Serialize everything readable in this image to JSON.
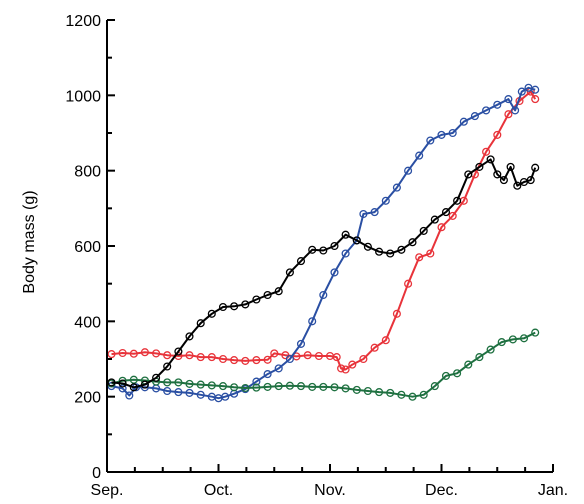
{
  "chart_data": {
    "type": "line",
    "title": "",
    "xlabel": "",
    "ylabel": "Body mass (g)",
    "xlim": [
      0,
      4
    ],
    "ylim": [
      0,
      1200
    ],
    "x_ticks": [
      {
        "value": 0,
        "label": "Sep."
      },
      {
        "value": 1,
        "label": "Oct."
      },
      {
        "value": 2,
        "label": "Nov."
      },
      {
        "value": 3,
        "label": "Dec."
      },
      {
        "value": 4,
        "label": "Jan."
      }
    ],
    "y_ticks": [
      0,
      200,
      400,
      600,
      800,
      1000,
      1200
    ],
    "y_minor_step": 100,
    "x_minor_per_major": 4,
    "grid": false,
    "legend": "none",
    "series": [
      {
        "color": "#e8333a",
        "marker": "circle-open",
        "x": [
          0.04,
          0.14,
          0.24,
          0.34,
          0.44,
          0.54,
          0.64,
          0.74,
          0.84,
          0.94,
          1.04,
          1.14,
          1.24,
          1.34,
          1.44,
          1.5,
          1.6,
          1.7,
          1.8,
          1.9,
          2.0,
          2.06,
          2.1,
          2.14,
          2.2,
          2.3,
          2.4,
          2.5,
          2.6,
          2.7,
          2.8,
          2.9,
          3.0,
          3.1,
          3.2,
          3.3,
          3.4,
          3.5,
          3.6,
          3.7,
          3.8,
          3.84
        ],
        "y": [
          313,
          316,
          314,
          318,
          315,
          310,
          308,
          310,
          305,
          305,
          300,
          297,
          295,
          297,
          298,
          315,
          310,
          307,
          310,
          308,
          308,
          305,
          275,
          272,
          285,
          300,
          330,
          350,
          420,
          500,
          570,
          580,
          650,
          680,
          720,
          790,
          850,
          895,
          950,
          985,
          1010,
          990
        ]
      },
      {
        "color": "#2a4fa3",
        "marker": "circle-open",
        "x": [
          0.04,
          0.14,
          0.2,
          0.26,
          0.34,
          0.44,
          0.54,
          0.64,
          0.74,
          0.84,
          0.94,
          1.0,
          1.06,
          1.14,
          1.24,
          1.34,
          1.44,
          1.54,
          1.64,
          1.74,
          1.84,
          1.94,
          2.04,
          2.14,
          2.24,
          2.3,
          2.4,
          2.5,
          2.6,
          2.7,
          2.8,
          2.9,
          3.0,
          3.1,
          3.2,
          3.3,
          3.4,
          3.5,
          3.6,
          3.66,
          3.72,
          3.78,
          3.84
        ],
        "y": [
          228,
          222,
          203,
          225,
          225,
          222,
          215,
          212,
          210,
          205,
          200,
          196,
          200,
          208,
          220,
          240,
          260,
          275,
          300,
          340,
          400,
          470,
          530,
          580,
          615,
          685,
          690,
          720,
          755,
          800,
          840,
          880,
          895,
          900,
          930,
          945,
          960,
          975,
          990,
          960,
          1010,
          1020,
          1015
        ]
      },
      {
        "color": "#1e7040",
        "marker": "circle-open",
        "x": [
          0.04,
          0.14,
          0.24,
          0.34,
          0.44,
          0.54,
          0.64,
          0.74,
          0.84,
          0.94,
          1.04,
          1.14,
          1.24,
          1.34,
          1.44,
          1.54,
          1.64,
          1.74,
          1.84,
          1.94,
          2.04,
          2.14,
          2.24,
          2.34,
          2.44,
          2.54,
          2.64,
          2.74,
          2.84,
          2.94,
          3.04,
          3.14,
          3.24,
          3.34,
          3.44,
          3.54,
          3.64,
          3.74,
          3.84
        ],
        "y": [
          235,
          242,
          245,
          243,
          240,
          238,
          238,
          234,
          232,
          230,
          228,
          225,
          223,
          224,
          226,
          228,
          229,
          228,
          226,
          226,
          225,
          222,
          218,
          215,
          212,
          210,
          205,
          200,
          205,
          228,
          255,
          262,
          285,
          305,
          325,
          345,
          352,
          355,
          370
        ]
      },
      {
        "color": "#000000",
        "marker": "circle-open",
        "x": [
          0.04,
          0.14,
          0.24,
          0.34,
          0.44,
          0.54,
          0.64,
          0.74,
          0.84,
          0.94,
          1.04,
          1.14,
          1.24,
          1.34,
          1.44,
          1.54,
          1.64,
          1.74,
          1.84,
          1.94,
          2.04,
          2.14,
          2.24,
          2.34,
          2.44,
          2.54,
          2.64,
          2.74,
          2.84,
          2.94,
          3.04,
          3.14,
          3.24,
          3.34,
          3.44,
          3.5,
          3.56,
          3.62,
          3.68,
          3.74,
          3.8,
          3.84
        ],
        "y": [
          238,
          235,
          225,
          232,
          250,
          280,
          320,
          360,
          395,
          420,
          438,
          440,
          445,
          458,
          470,
          480,
          530,
          560,
          590,
          588,
          600,
          630,
          615,
          598,
          585,
          580,
          590,
          610,
          640,
          670,
          690,
          720,
          790,
          810,
          830,
          790,
          775,
          810,
          760,
          770,
          775,
          808
        ]
      }
    ]
  }
}
